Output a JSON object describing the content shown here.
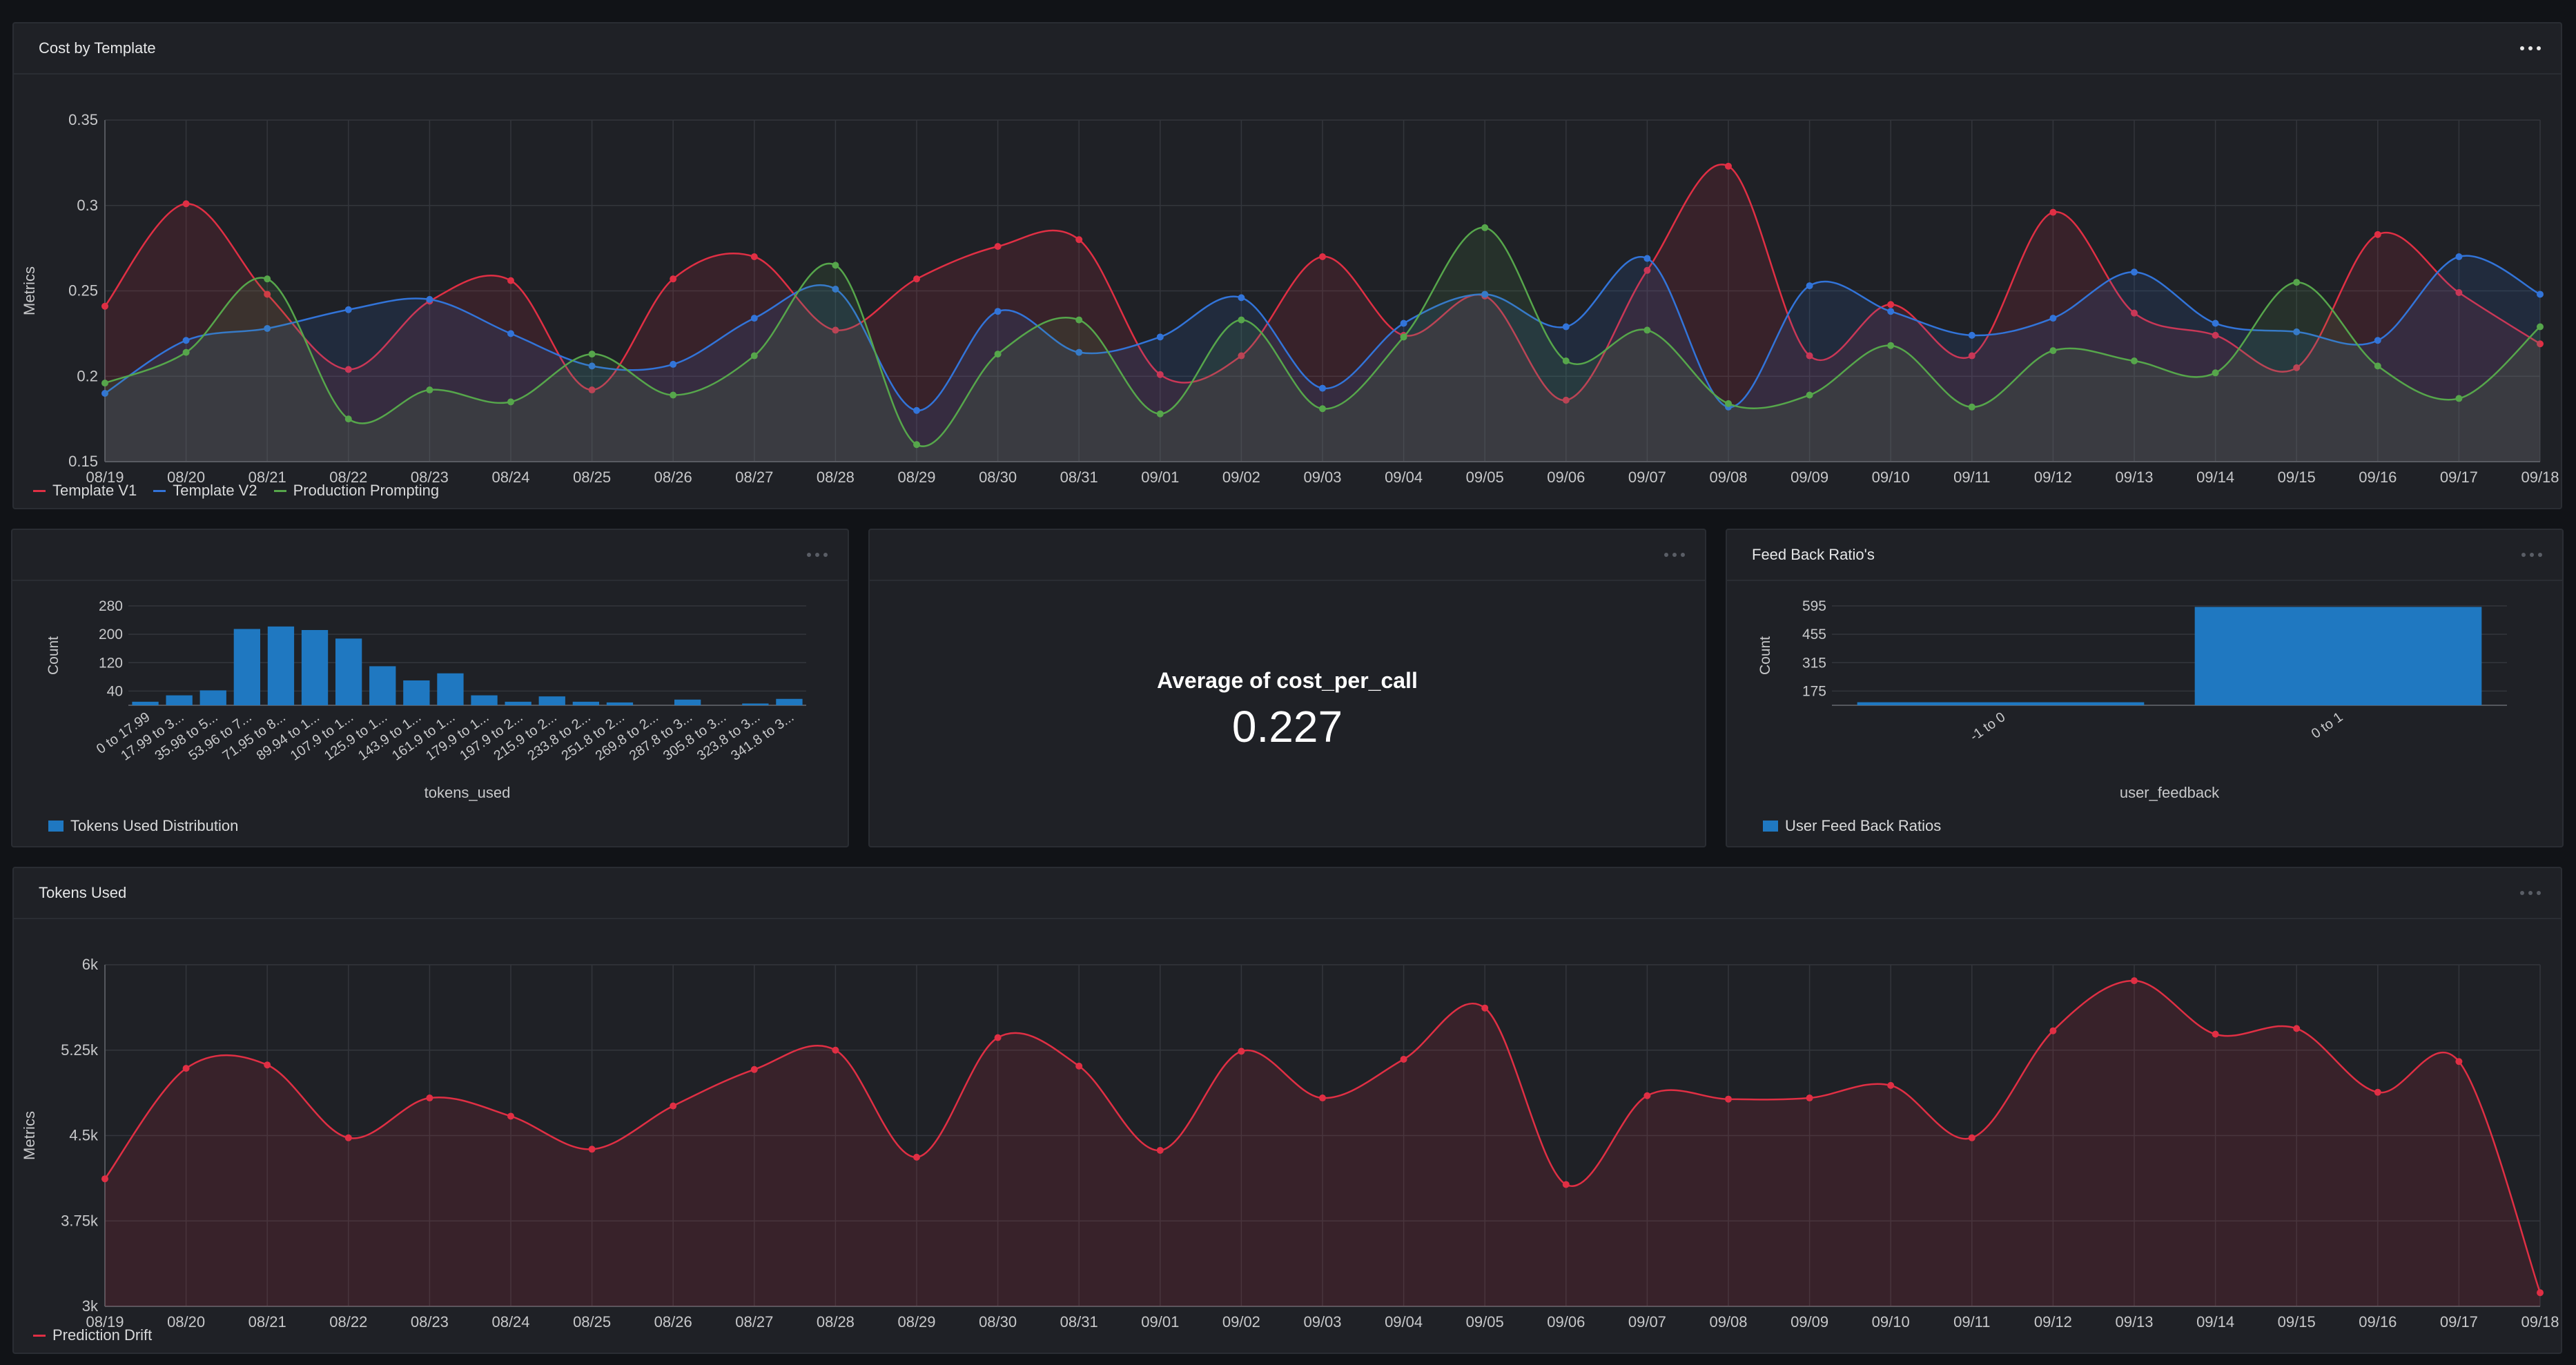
{
  "panels": {
    "cost": {
      "title": "Cost by Template",
      "legend": [
        {
          "name": "Template V1",
          "color": "#e02f44"
        },
        {
          "name": "Template V2",
          "color": "#3274d9"
        },
        {
          "name": "Production Prompting",
          "color": "#56a64b"
        }
      ]
    },
    "tokens_hist": {
      "title": "",
      "legend": [
        {
          "name": "Tokens Used Distribution",
          "color": "#1f78c1"
        }
      ]
    },
    "stat": {
      "title": "",
      "label": "Average of cost_per_call",
      "value": "0.227"
    },
    "feedback": {
      "title": "Feed Back Ratio's",
      "legend": [
        {
          "name": "User Feed Back Ratios",
          "color": "#1f78c1"
        }
      ]
    },
    "tokens_used": {
      "title": "Tokens Used",
      "legend": [
        {
          "name": "Prediction Drift",
          "color": "#e02f44"
        }
      ]
    }
  },
  "chart_data": [
    {
      "type": "area",
      "title": "Cost by Template",
      "ylabel": "Metrics",
      "xlabel": "",
      "ylim": [
        0.15,
        0.35
      ],
      "yticks": [
        "0.15",
        "0.2",
        "0.25",
        "0.3",
        "0.35"
      ],
      "grid": true,
      "legend_position": "bottom-left",
      "x": [
        "08/19",
        "08/20",
        "08/21",
        "08/22",
        "08/23",
        "08/24",
        "08/25",
        "08/26",
        "08/27",
        "08/28",
        "08/29",
        "08/30",
        "08/31",
        "09/01",
        "09/02",
        "09/03",
        "09/04",
        "09/05",
        "09/06",
        "09/07",
        "09/08",
        "09/09",
        "09/10",
        "09/11",
        "09/12",
        "09/13",
        "09/14",
        "09/15",
        "09/16",
        "09/17",
        "09/18"
      ],
      "series": [
        {
          "name": "Template V1",
          "color": "#e02f44",
          "values": [
            0.241,
            0.301,
            0.248,
            0.204,
            0.244,
            0.256,
            0.192,
            0.257,
            0.27,
            0.227,
            0.257,
            0.276,
            0.28,
            0.201,
            0.212,
            0.27,
            0.224,
            0.247,
            0.186,
            0.262,
            0.323,
            0.212,
            0.242,
            0.212,
            0.296,
            0.237,
            0.224,
            0.205,
            0.283,
            0.249,
            0.219
          ]
        },
        {
          "name": "Template V2",
          "color": "#3274d9",
          "values": [
            0.19,
            0.221,
            0.228,
            0.239,
            0.245,
            0.225,
            0.206,
            0.207,
            0.234,
            0.251,
            0.18,
            0.238,
            0.214,
            0.223,
            0.246,
            0.193,
            0.231,
            0.248,
            0.229,
            0.269,
            0.182,
            0.253,
            0.238,
            0.224,
            0.234,
            0.261,
            0.231,
            0.226,
            0.221,
            0.27,
            0.248
          ]
        },
        {
          "name": "Production Prompting",
          "color": "#56a64b",
          "values": [
            0.196,
            0.214,
            0.257,
            0.175,
            0.192,
            0.185,
            0.213,
            0.189,
            0.212,
            0.265,
            0.16,
            0.213,
            0.233,
            0.178,
            0.233,
            0.181,
            0.223,
            0.287,
            0.209,
            0.227,
            0.184,
            0.189,
            0.218,
            0.182,
            0.215,
            0.209,
            0.202,
            0.255,
            0.206,
            0.187,
            0.229
          ]
        }
      ]
    },
    {
      "type": "bar",
      "title": "",
      "xlabel": "tokens_used",
      "ylabel": "Count",
      "ylim": [
        0,
        280
      ],
      "yticks": [
        "40",
        "120",
        "200",
        "280"
      ],
      "grid": true,
      "legend_position": "bottom-left",
      "categories": [
        "0 to 17.99",
        "17.99 to 3...",
        "35.98 to 5...",
        "53.96 to 7...",
        "71.95 to 8...",
        "89.94 to 1...",
        "107.9 to 1...",
        "125.9 to 1...",
        "143.9 to 1...",
        "161.9 to 1...",
        "179.9 to 1...",
        "197.9 to 2...",
        "215.9 to 2...",
        "233.8 to 2...",
        "251.8 to 2...",
        "269.8 to 2...",
        "287.8 to 3...",
        "305.8 to 3...",
        "323.8 to 3...",
        "341.8 to 3..."
      ],
      "tick_labels_shown": [
        "0 to 17.99",
        "17.99 to 3...",
        "35.98 to 5...",
        "53.96 to 7...",
        "71.95 to 8...",
        "89.94 to 1...",
        "107.9 to 1...",
        "125.9 to 1...",
        "143.9 to 1...",
        "161.9 to 1...",
        "179.9 to 1...",
        "197.9 to 2...",
        "215.9 to 2...",
        "233.8 to 2...",
        "251.8 to 2...",
        "269.8 to 2...",
        "287.8 to 3...",
        "305.8 to 3...",
        "323.8 to 3...",
        "341.8 to 3..."
      ],
      "series": [
        {
          "name": "Tokens Used Distribution",
          "color": "#1f78c1",
          "values": [
            10,
            28,
            42,
            215,
            222,
            212,
            188,
            110,
            70,
            90,
            28,
            10,
            25,
            10,
            8,
            0,
            16,
            0,
            5,
            18
          ]
        }
      ]
    },
    {
      "type": "bar",
      "title": "Feed Back Ratio's",
      "xlabel": "user_feedback",
      "ylabel": "Count",
      "ylim": [
        105,
        595
      ],
      "yticks": [
        "175",
        "315",
        "455",
        "595"
      ],
      "grid": true,
      "legend_position": "bottom-left",
      "categories": [
        "-1 to 0",
        "0 to 1"
      ],
      "series": [
        {
          "name": "User Feed Back Ratios",
          "color": "#1f78c1",
          "values": [
            120,
            590
          ]
        }
      ]
    },
    {
      "type": "area",
      "title": "Tokens Used",
      "ylabel": "Metrics",
      "xlabel": "",
      "ylim": [
        3000,
        6000
      ],
      "yticks": [
        "3k",
        "3.75k",
        "4.5k",
        "5.25k",
        "6k"
      ],
      "grid": true,
      "legend_position": "bottom-left",
      "x": [
        "08/19",
        "08/20",
        "08/21",
        "08/22",
        "08/23",
        "08/24",
        "08/25",
        "08/26",
        "08/27",
        "08/28",
        "08/29",
        "08/30",
        "08/31",
        "09/01",
        "09/02",
        "09/03",
        "09/04",
        "09/05",
        "09/06",
        "09/07",
        "09/08",
        "09/09",
        "09/10",
        "09/11",
        "09/12",
        "09/13",
        "09/14",
        "09/15",
        "09/16",
        "09/17",
        "09/18"
      ],
      "series": [
        {
          "name": "Prediction Drift",
          "color": "#e02f44",
          "values": [
            4120,
            5090,
            5120,
            4480,
            4830,
            4670,
            4380,
            4760,
            5080,
            5250,
            4310,
            5360,
            5110,
            4370,
            5240,
            4830,
            5170,
            5620,
            4070,
            4850,
            4820,
            4830,
            4940,
            4480,
            5420,
            5860,
            5390,
            5440,
            4880,
            5150,
            3120
          ]
        }
      ]
    }
  ]
}
